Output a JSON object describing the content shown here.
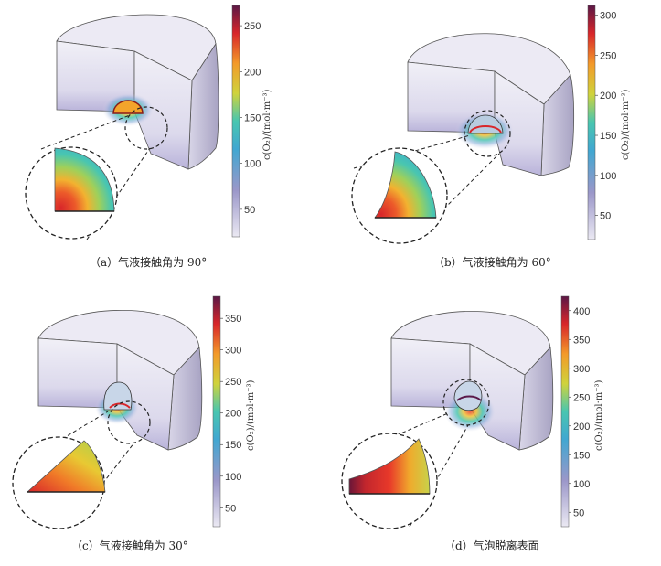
{
  "panels": [
    {
      "id": "a",
      "caption": "（a）气液接触角为 90°",
      "colorbar": {
        "title": "c(O₂)/(mol·m⁻³)",
        "ticks": [
          "250",
          "200",
          "150",
          "100",
          "50"
        ]
      },
      "tick_values": [
        250,
        200,
        150,
        100,
        50
      ],
      "range": [
        20,
        272
      ]
    },
    {
      "id": "b",
      "caption": "（b）气液接触角为 60°",
      "colorbar": {
        "title": "c(O₂)/(mol·m⁻³)",
        "ticks": [
          "300",
          "250",
          "200",
          "150",
          "100",
          "50"
        ]
      },
      "tick_values": [
        300,
        250,
        200,
        150,
        100,
        50
      ],
      "range": [
        20,
        312
      ]
    },
    {
      "id": "c",
      "caption": "（c）气液接触角为 30°",
      "colorbar": {
        "title": "c(O₂)/(mol·m⁻³)",
        "ticks": [
          "350",
          "300",
          "250",
          "200",
          "150",
          "100",
          "50"
        ]
      },
      "tick_values": [
        350,
        300,
        250,
        200,
        150,
        100,
        50
      ],
      "range": [
        20,
        385
      ]
    },
    {
      "id": "d",
      "caption": "（d）气泡脱离表面",
      "colorbar": {
        "title": "c(O₂)/(mol·m⁻³)",
        "ticks": [
          "400",
          "350",
          "300",
          "250",
          "200",
          "150",
          "100",
          "50"
        ]
      },
      "tick_values": [
        400,
        350,
        300,
        250,
        200,
        150,
        100,
        50
      ],
      "range": [
        25,
        425
      ]
    }
  ],
  "colors": {
    "low": "#e6e4f0",
    "mid_low": "#7fa8d8",
    "mid": "#3fbfc9",
    "mid_high": "#d4d13a",
    "high": "#e8392a",
    "max": "#5a1a4a",
    "cylinder_face": "#e9e7f3",
    "cylinder_side": "#c8c4dc"
  }
}
